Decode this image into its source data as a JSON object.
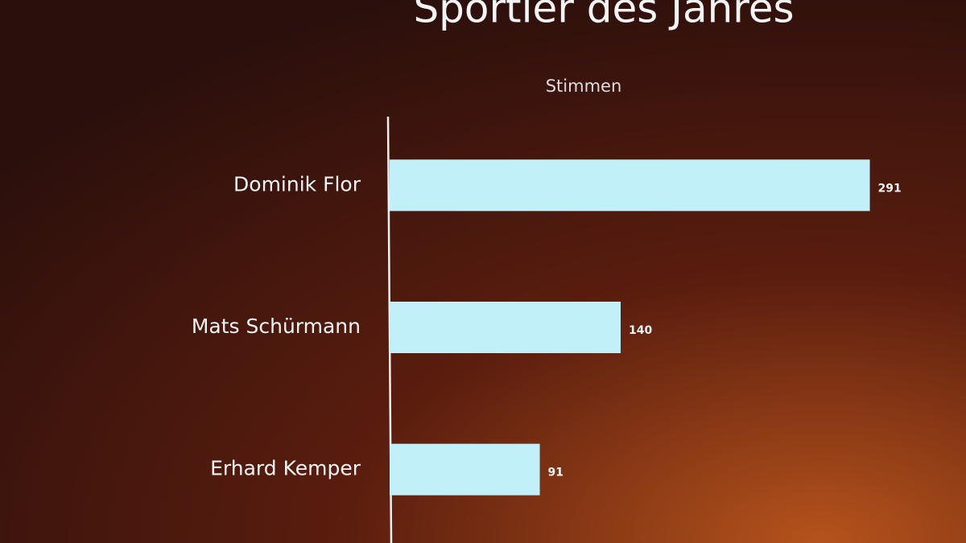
{
  "chart_data": {
    "type": "bar",
    "orientation": "horizontal",
    "title": "Sportler des Jahres",
    "series_name": "Stimmen",
    "categories": [
      "Dominik Flor",
      "Mats Schürmann",
      "Erhard Kemper"
    ],
    "values": [
      291,
      140,
      91
    ],
    "color": "#c2f0f8"
  }
}
